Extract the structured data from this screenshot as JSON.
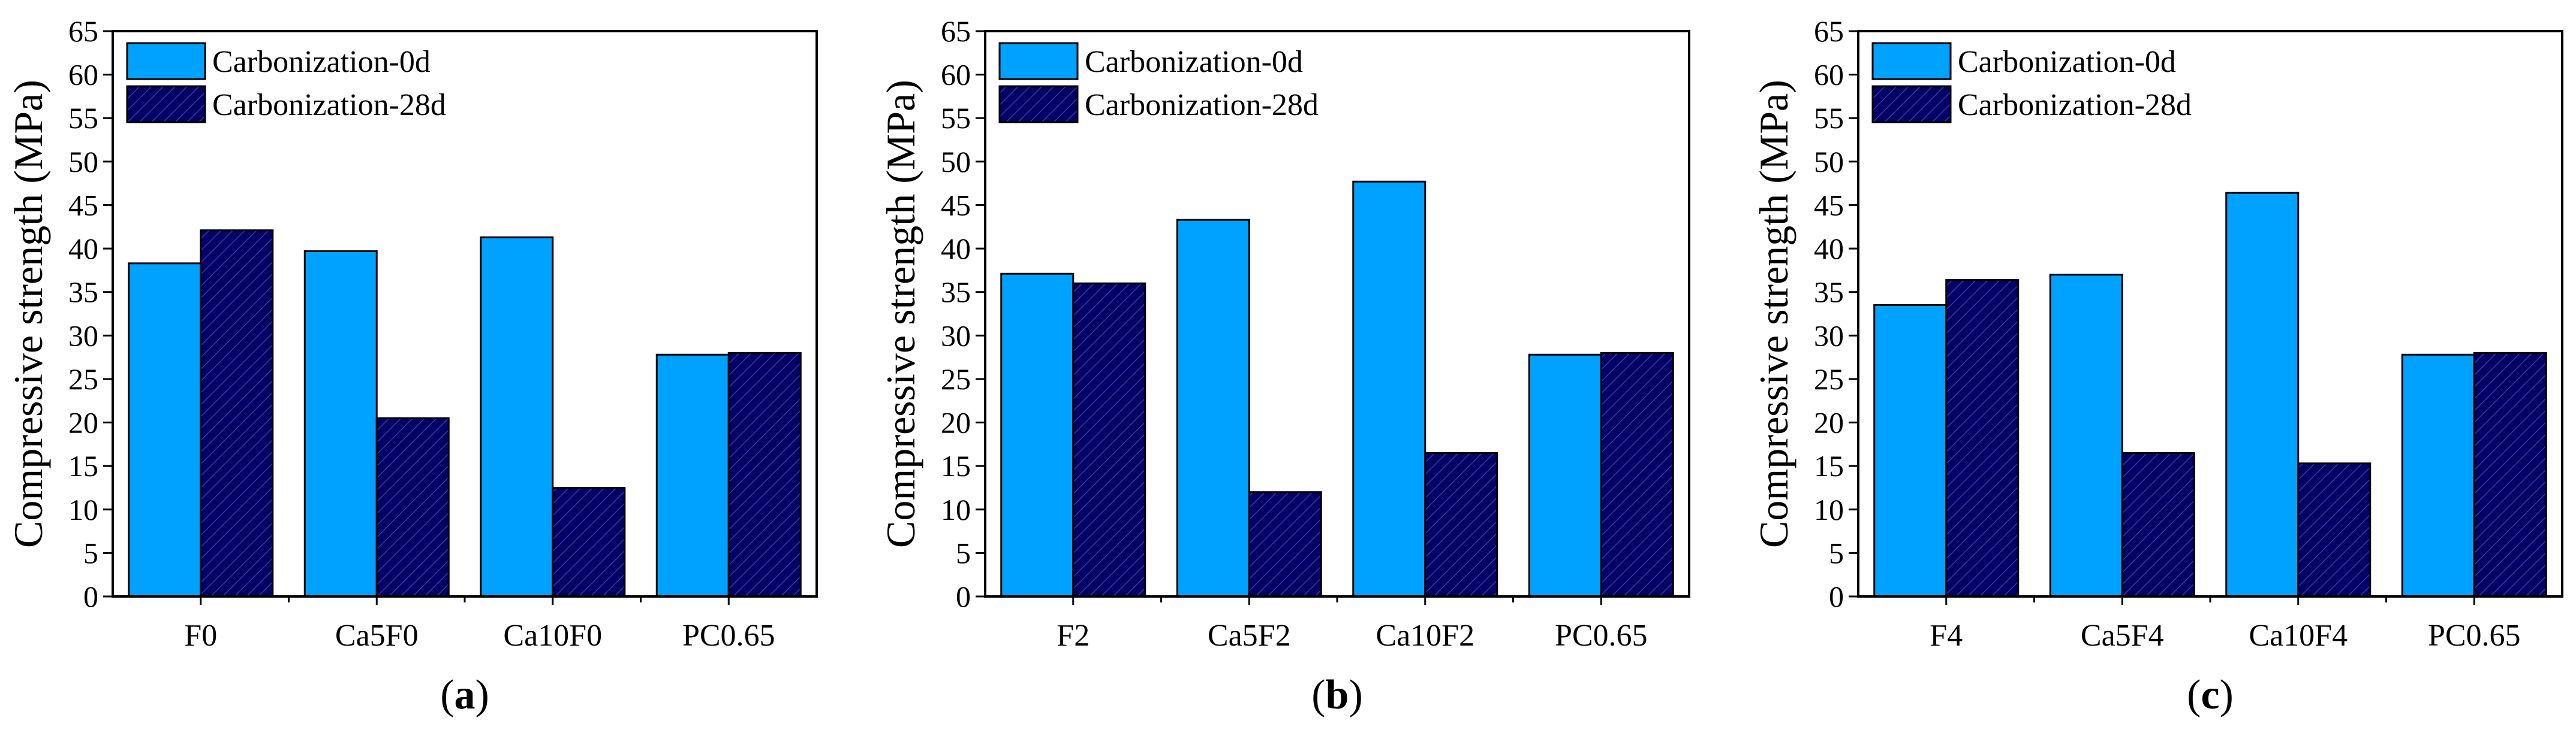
{
  "colors": {
    "series0": "#00a2ff",
    "series1": "#030066",
    "hatch": "#3a3a9a",
    "axis": "#000000"
  },
  "legend": [
    "Carbonization-0d",
    "Carbonization-28d"
  ],
  "chart_data": [
    {
      "type": "bar",
      "panel_label": "a",
      "categories": [
        "F0",
        "Ca5F0",
        "Ca10F0",
        "PC0.65"
      ],
      "series": [
        {
          "name": "Carbonization-0d",
          "values": [
            38.3,
            39.7,
            41.3,
            27.8
          ]
        },
        {
          "name": "Carbonization-28d",
          "values": [
            42.1,
            20.5,
            12.5,
            28.0
          ]
        }
      ],
      "ylabel": "Compressive strength (MPa)",
      "ylim": [
        0,
        65
      ],
      "yticks": [
        0,
        5,
        10,
        15,
        20,
        25,
        30,
        35,
        40,
        45,
        50,
        55,
        60,
        65
      ],
      "legend_position": "top-left"
    },
    {
      "type": "bar",
      "panel_label": "b",
      "categories": [
        "F2",
        "Ca5F2",
        "Ca10F2",
        "PC0.65"
      ],
      "series": [
        {
          "name": "Carbonization-0d",
          "values": [
            37.1,
            43.3,
            47.7,
            27.8
          ]
        },
        {
          "name": "Carbonization-28d",
          "values": [
            36.0,
            12.0,
            16.5,
            28.0
          ]
        }
      ],
      "ylabel": "Compressive strength (MPa)",
      "ylim": [
        0,
        65
      ],
      "yticks": [
        0,
        5,
        10,
        15,
        20,
        25,
        30,
        35,
        40,
        45,
        50,
        55,
        60,
        65
      ],
      "legend_position": "top-left"
    },
    {
      "type": "bar",
      "panel_label": "c",
      "categories": [
        "F4",
        "Ca5F4",
        "Ca10F4",
        "PC0.65"
      ],
      "series": [
        {
          "name": "Carbonization-0d",
          "values": [
            33.5,
            37.0,
            46.4,
            27.8
          ]
        },
        {
          "name": "Carbonization-28d",
          "values": [
            36.4,
            16.5,
            15.3,
            28.0
          ]
        }
      ],
      "ylabel": "Compressive strength (MPa)",
      "ylim": [
        0,
        65
      ],
      "yticks": [
        0,
        5,
        10,
        15,
        20,
        25,
        30,
        35,
        40,
        45,
        50,
        55,
        60,
        65
      ],
      "legend_position": "top-left"
    }
  ]
}
